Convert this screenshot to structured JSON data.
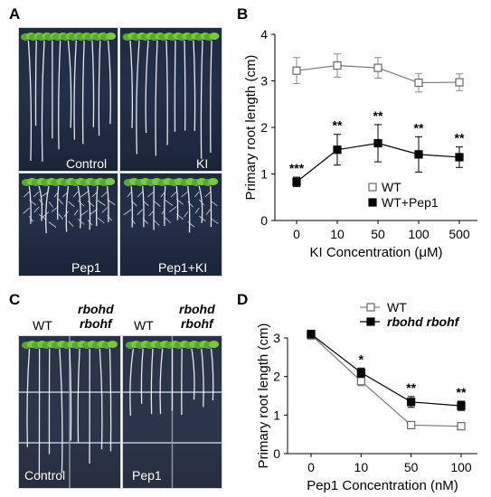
{
  "panels": {
    "A": {
      "letter": "A",
      "photos": [
        {
          "label": "Control",
          "seedlings": 11,
          "shortRoots": false,
          "lateral": false
        },
        {
          "label": "KI",
          "seedlings": 10,
          "shortRoots": false,
          "lateral": false
        },
        {
          "label": "Pep1",
          "seedlings": 9,
          "shortRoots": true,
          "lateral": true
        },
        {
          "label": "Pep1+KI",
          "seedlings": 8,
          "shortRoots": true,
          "lateral": true
        }
      ]
    },
    "B": {
      "letter": "B"
    },
    "C": {
      "letter": "C",
      "columns": {
        "wt1": "WT",
        "mut1_line1": "rbohd",
        "mut1_line2": "rbohf",
        "wt2": "WT",
        "mut2_line1": "rbohd",
        "mut2_line2": "rbohf"
      },
      "photos": [
        {
          "label": "Control"
        },
        {
          "label": "Pep1"
        }
      ]
    },
    "D": {
      "letter": "D"
    }
  },
  "chart_data": [
    {
      "type": "line",
      "panel": "B",
      "ylabel": "Primary root length (cm)",
      "xlabel": "KI Concentration (μM)",
      "categories": [
        "0",
        "10",
        "50",
        "100",
        "500"
      ],
      "ylim": [
        0,
        4
      ],
      "yticks": [
        0,
        1,
        2,
        3,
        4
      ],
      "series": [
        {
          "name": "WT",
          "marker": "open-square",
          "values": [
            3.22,
            3.33,
            3.28,
            2.96,
            2.97
          ],
          "errors": [
            0.28,
            0.25,
            0.22,
            0.2,
            0.18
          ]
        },
        {
          "name": "WT+Pep1",
          "marker": "filled-square",
          "values": [
            0.83,
            1.52,
            1.66,
            1.42,
            1.36
          ],
          "errors": [
            0.1,
            0.33,
            0.4,
            0.38,
            0.22
          ]
        }
      ],
      "annotations": [
        "***",
        "**",
        "**",
        "**",
        "**"
      ],
      "legend": "bottom-right"
    },
    {
      "type": "line",
      "panel": "D",
      "ylabel": "Primary root length (cm)",
      "xlabel": "Pep1 Concentration (nM)",
      "categories": [
        "0",
        "10",
        "50",
        "100"
      ],
      "ylim": [
        0,
        3
      ],
      "yticks": [
        0,
        1,
        2,
        3
      ],
      "series": [
        {
          "name": "WT",
          "marker": "open-square",
          "values": [
            3.08,
            1.88,
            0.74,
            0.71
          ],
          "errors": [
            0.12,
            0.12,
            0.07,
            0.07
          ]
        },
        {
          "name": "rbohd rbohf",
          "marker": "filled-square",
          "values": [
            3.1,
            2.1,
            1.34,
            1.24
          ],
          "errors": [
            0.1,
            0.12,
            0.14,
            0.12
          ]
        }
      ],
      "annotations": [
        "",
        "*",
        "**",
        "**"
      ],
      "legend": "top-right"
    }
  ]
}
